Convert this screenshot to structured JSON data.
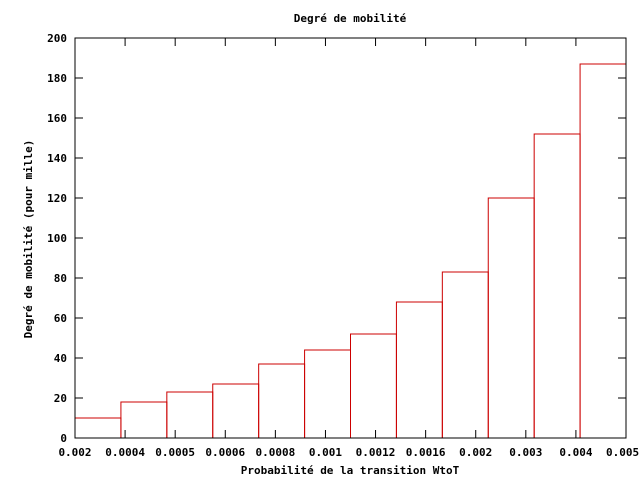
{
  "chart_data": {
    "type": "bar",
    "title": "Degré de mobilité",
    "xlabel": "Probabilité de la transition WtoT",
    "ylabel": "Degré de mobilité (pour mille)",
    "categories": [
      "0.002",
      "0.0004",
      "0.0005",
      "0.0006",
      "0.0008",
      "0.001",
      "0.0012",
      "0.0016",
      "0.002",
      "0.003",
      "0.004",
      "0.005"
    ],
    "x_tick_labels": [
      "0.002",
      "0.0004",
      "0.0005",
      "0.0006",
      "0.0008",
      "0.001",
      "0.0012",
      "0.0016",
      "0.002",
      "0.003",
      "0.004",
      "0.005"
    ],
    "values": [
      10,
      18,
      23,
      27,
      37,
      44,
      52,
      68,
      83,
      120,
      152,
      187
    ],
    "ylim": [
      0,
      200
    ],
    "y_ticks": [
      0,
      20,
      40,
      60,
      80,
      100,
      120,
      140,
      160,
      180,
      200
    ],
    "grid": false,
    "bar_color": "#cc0000"
  }
}
